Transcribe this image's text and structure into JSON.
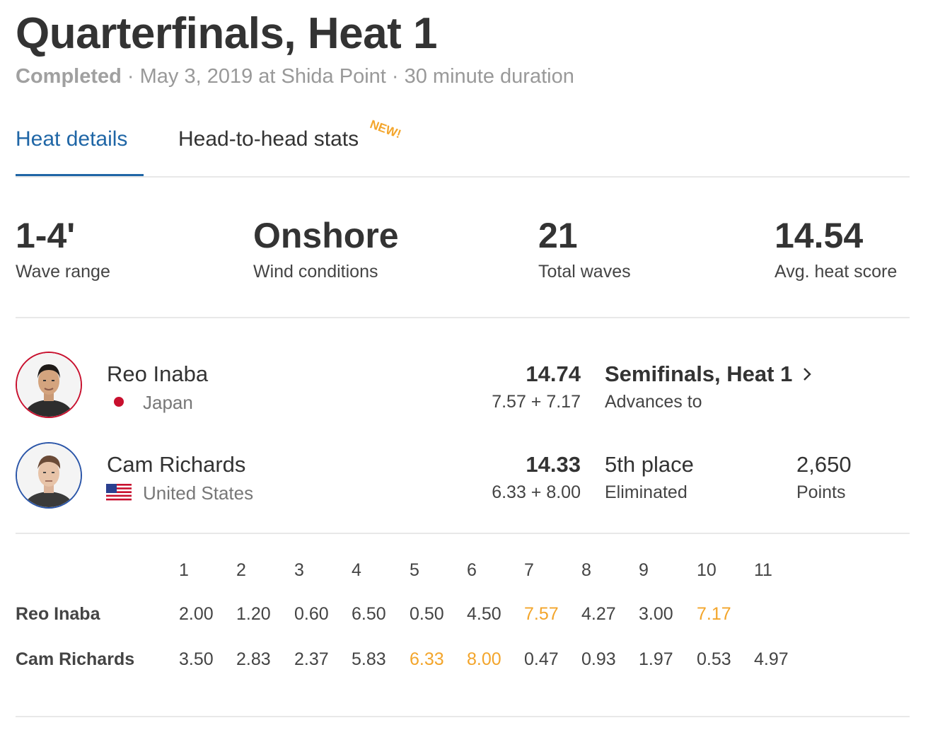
{
  "header": {
    "title": "Quarterfinals, Heat 1",
    "status": "Completed",
    "details": " · May 3, 2019 at Shida Point · 30 minute duration"
  },
  "tabs": [
    {
      "label": "Heat details",
      "active": true
    },
    {
      "label": "Head-to-head stats",
      "badge": "NEW!"
    }
  ],
  "stats": [
    {
      "value": "1-4'",
      "label": "Wave range"
    },
    {
      "value": "Onshore",
      "label": "Wind conditions"
    },
    {
      "value": "21",
      "label": "Total waves"
    },
    {
      "value": "14.54",
      "label": "Avg. heat score"
    }
  ],
  "athletes": [
    {
      "name": "Reo Inaba",
      "country": "Japan",
      "flag": "japan-flag-icon",
      "total": "14.74",
      "breakdown": "7.57 + 7.17",
      "result_title": "Semifinals, Heat 1",
      "result_sub": "Advances to",
      "ring_color": "#c8102e"
    },
    {
      "name": "Cam Richards",
      "country": "United States",
      "flag": "usa-flag-icon",
      "total": "14.33",
      "breakdown": "6.33 + 8.00",
      "result_title": "5th place",
      "result_sub": "Eliminated",
      "points_value": "2,650",
      "points_label": "Points",
      "ring_color": "#2a55a8"
    }
  ],
  "wave_table": {
    "waves": [
      "1",
      "2",
      "3",
      "4",
      "5",
      "6",
      "7",
      "8",
      "9",
      "10",
      "11"
    ],
    "rows": [
      {
        "name": "Reo Inaba",
        "scores": [
          "2.00",
          "1.20",
          "0.60",
          "6.50",
          "0.50",
          "4.50",
          "7.57",
          "4.27",
          "3.00",
          "7.17"
        ],
        "counted": [
          6,
          9
        ]
      },
      {
        "name": "Cam Richards",
        "scores": [
          "3.50",
          "2.83",
          "2.37",
          "5.83",
          "6.33",
          "8.00",
          "0.47",
          "0.93",
          "1.97",
          "0.53",
          "4.97"
        ],
        "counted": [
          4,
          5
        ]
      }
    ],
    "highlight_color": "#f3a52b"
  }
}
